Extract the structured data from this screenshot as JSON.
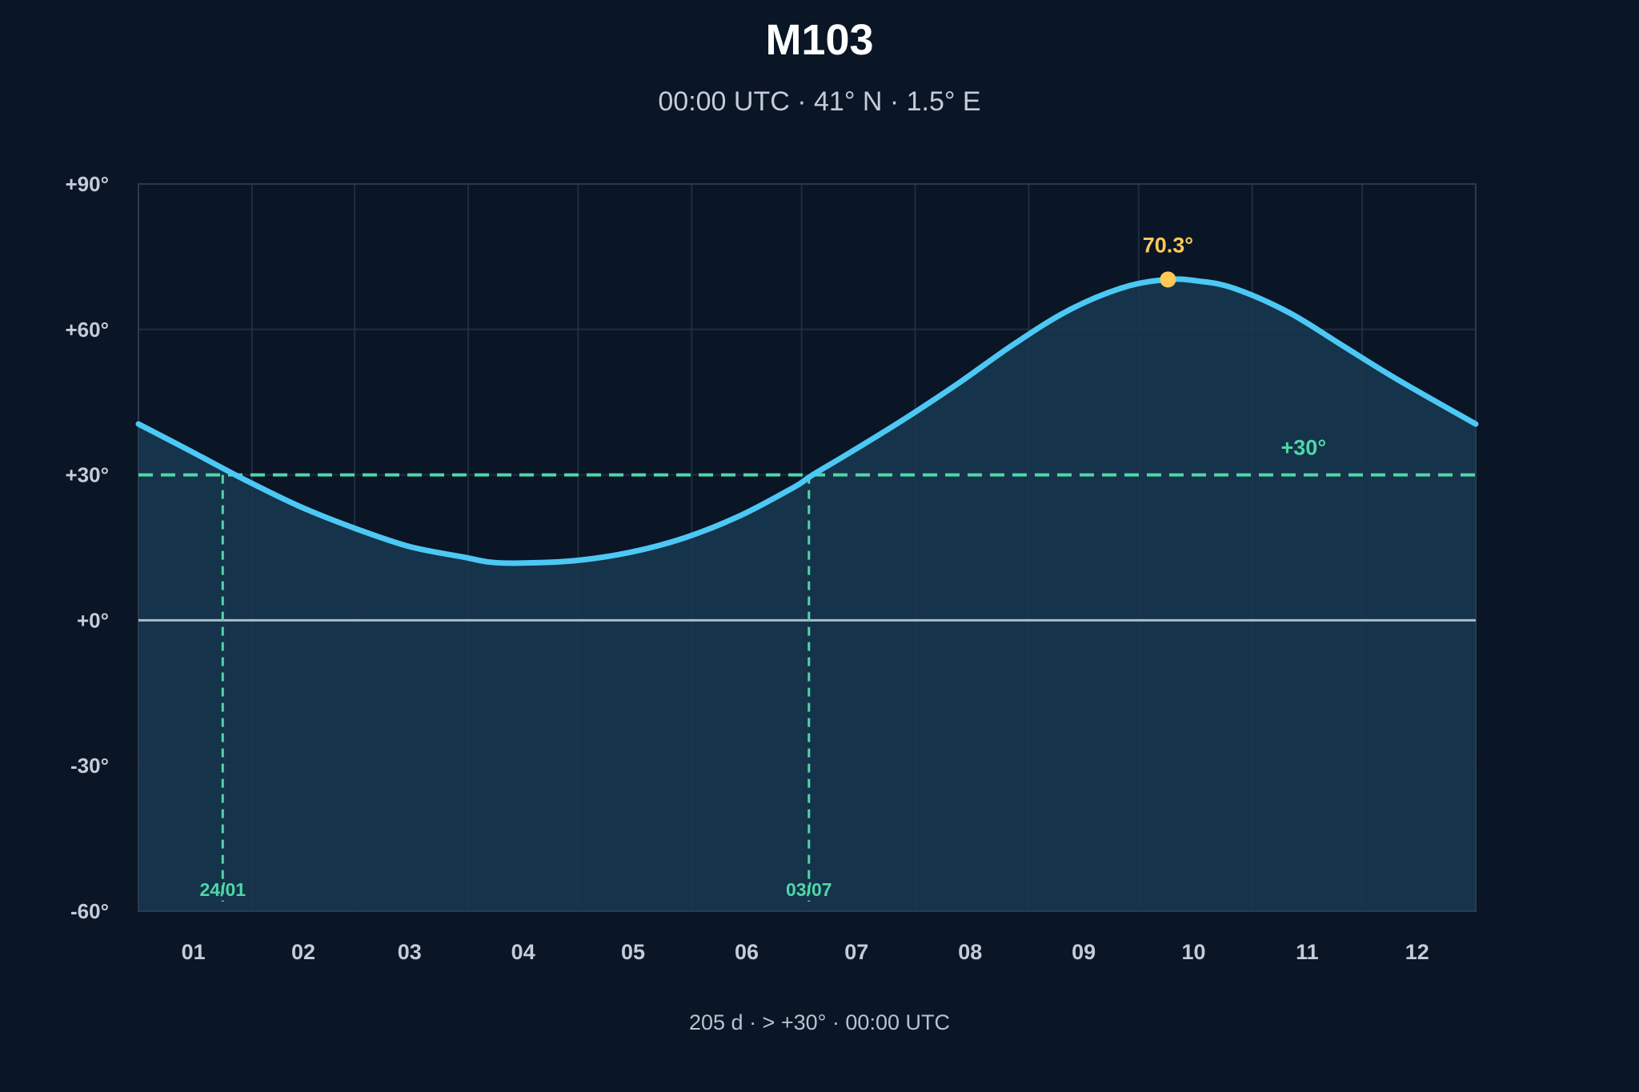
{
  "chart_data": {
    "type": "line",
    "title": "M103",
    "subtitle": "00:00 UTC · 41° N · 1.5° E",
    "footer": "205 d · > +30° · 00:00 UTC",
    "x_ticks": [
      "01",
      "02",
      "03",
      "04",
      "05",
      "06",
      "07",
      "08",
      "09",
      "10",
      "11",
      "12"
    ],
    "y_ticks": [
      {
        "value": 90,
        "label": "+90°"
      },
      {
        "value": 60,
        "label": "+60°"
      },
      {
        "value": 30,
        "label": "+30°"
      },
      {
        "value": 0,
        "label": "+0°"
      },
      {
        "value": -30,
        "label": "-30°"
      },
      {
        "value": -60,
        "label": "-60°"
      }
    ],
    "ylim": [
      -60,
      90
    ],
    "xlim_day_of_year": [
      1,
      366
    ],
    "grid": true,
    "series": [
      {
        "day_of_year": [
          1,
          15,
          30,
          45,
          60,
          75,
          90,
          97,
          105,
          120,
          135,
          150,
          165,
          180,
          185,
          195,
          210,
          225,
          240,
          255,
          270,
          282,
          290,
          300,
          315,
          330,
          345,
          366
        ],
        "altitude_deg": [
          40.5,
          35.0,
          29.0,
          23.5,
          19.0,
          15.2,
          13.0,
          12.0,
          11.8,
          12.3,
          14.0,
          17.0,
          21.5,
          27.5,
          30.0,
          34.5,
          41.5,
          49.0,
          57.0,
          64.0,
          68.7,
          70.3,
          70.0,
          68.5,
          63.5,
          56.5,
          49.5,
          40.5
        ]
      }
    ],
    "peak": {
      "day_of_year": 282,
      "value": 70.3,
      "label": "70.3°"
    },
    "threshold": {
      "value": 30,
      "label": "+30°"
    },
    "crossings": [
      {
        "day_of_year": 24,
        "label": "24/01"
      },
      {
        "day_of_year": 184,
        "label": "03/07"
      }
    ],
    "colors": {
      "background": "#0a1526",
      "line": "#4cc8f4",
      "fill": "#15334a",
      "threshold": "#4fd6a8",
      "horizon": "#a9bccc",
      "peak": "#ffc857",
      "grid": "#223449",
      "text": "#c3ccd8"
    }
  }
}
